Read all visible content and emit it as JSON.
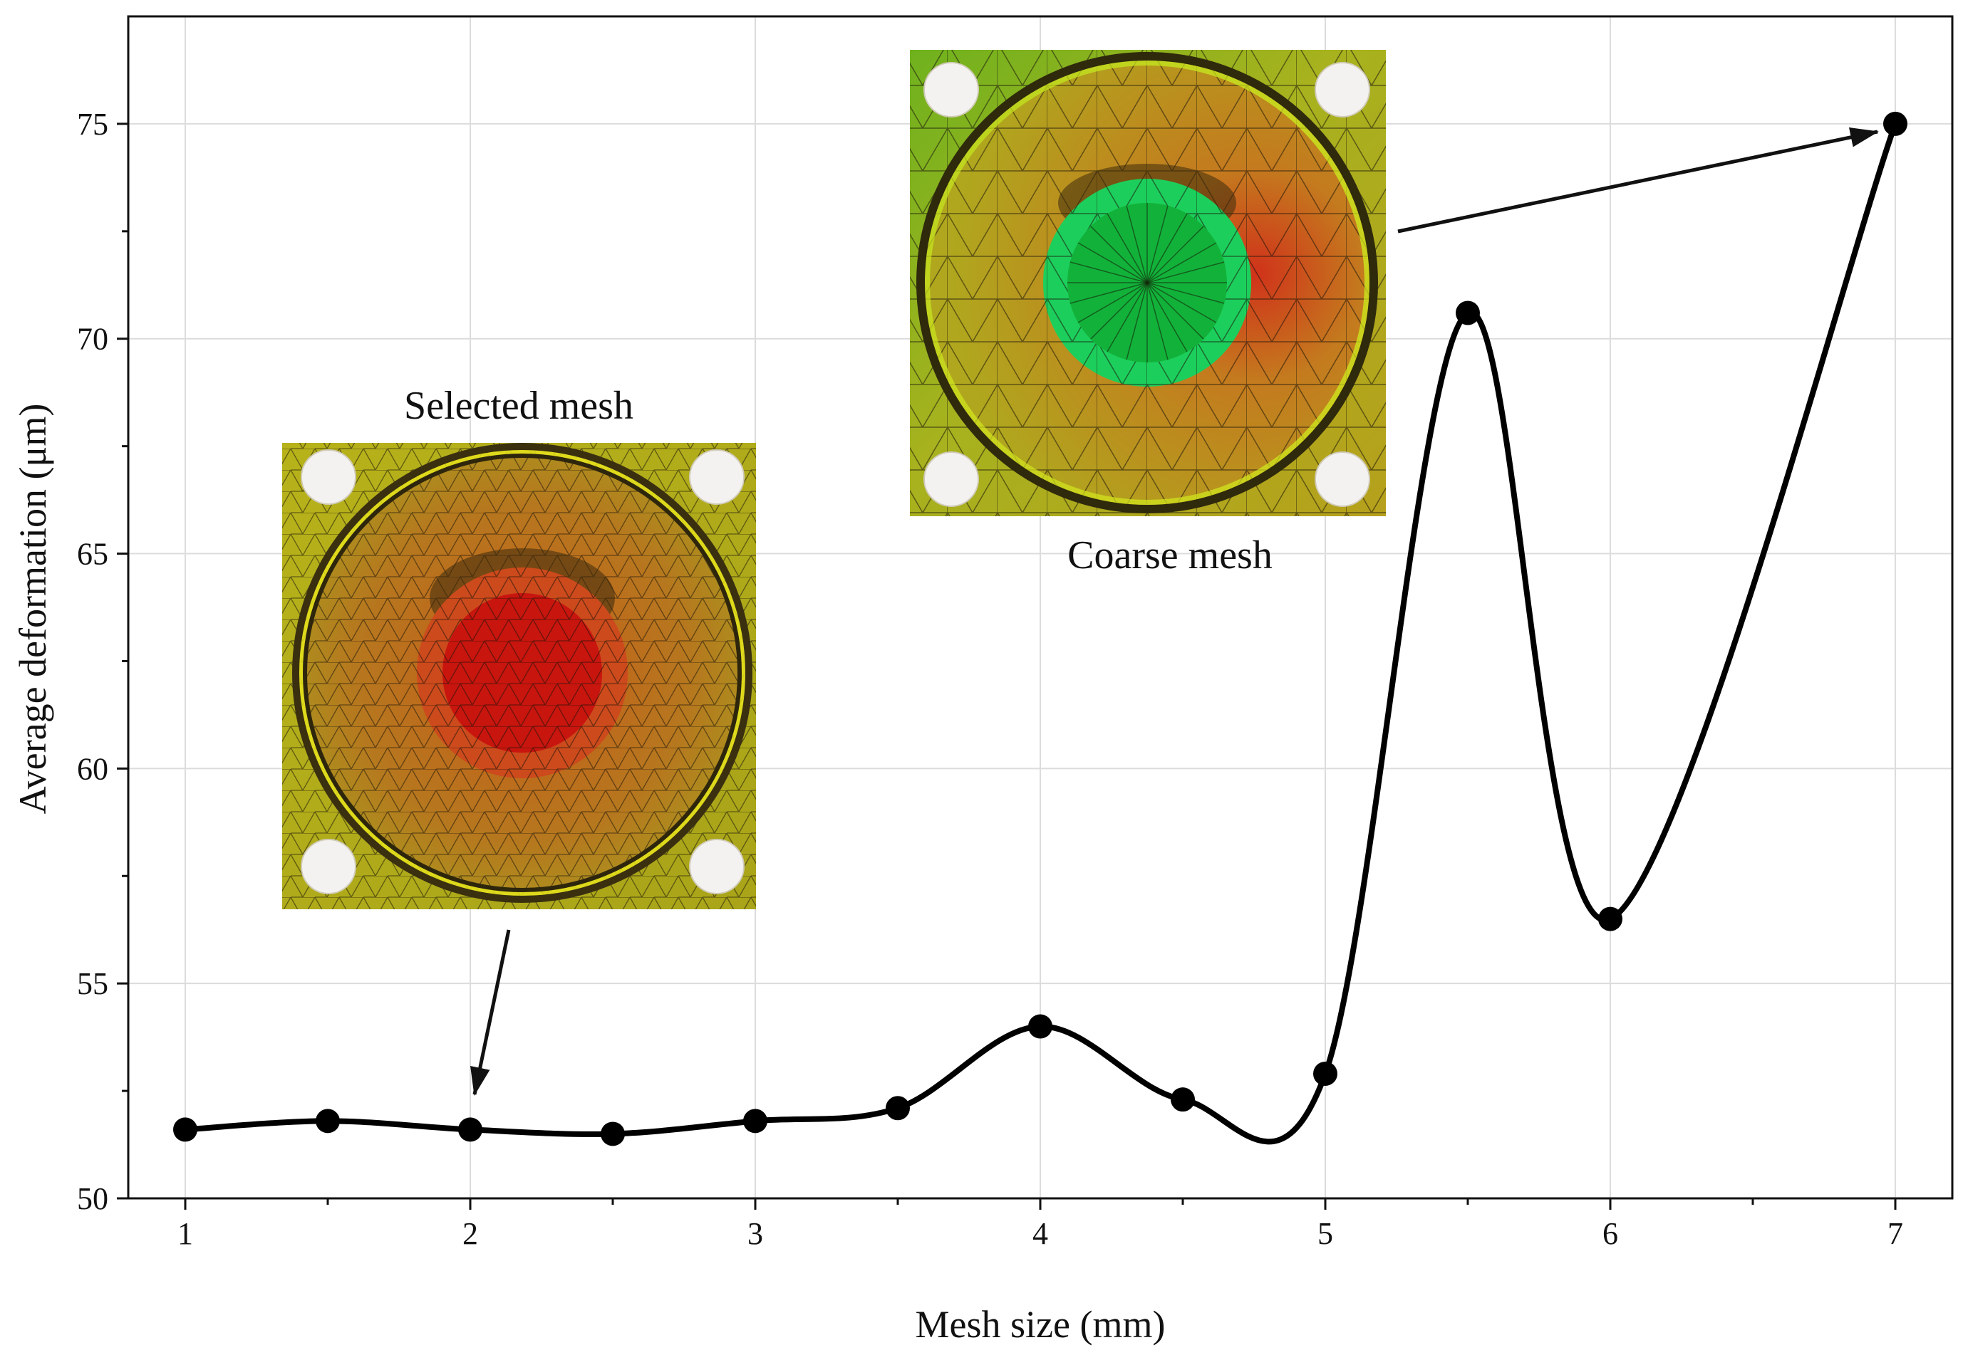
{
  "chart_data": {
    "type": "line",
    "title": "",
    "xlabel": "Mesh size (mm)",
    "ylabel": "Average deformation (μm)",
    "xlim": [
      0.8,
      7.2
    ],
    "ylim": [
      50,
      77.5
    ],
    "grid": true,
    "x": [
      1,
      1.5,
      2,
      2.5,
      3,
      3.5,
      4,
      4.5,
      5,
      5.5,
      6,
      7
    ],
    "y": [
      51.6,
      51.8,
      51.6,
      51.5,
      51.8,
      52.1,
      54.0,
      52.3,
      52.9,
      70.6,
      56.5,
      75.0
    ],
    "x_ticks": [
      1,
      2,
      3,
      4,
      5,
      6,
      7
    ],
    "x_tick_labels": [
      "1",
      "2",
      "3",
      "4",
      "5",
      "6",
      "7"
    ],
    "y_ticks": [
      50,
      55,
      60,
      65,
      70,
      75
    ],
    "y_tick_labels": [
      "50",
      "55",
      "60",
      "65",
      "70",
      "75"
    ],
    "line_color": "#000000",
    "annotations": [
      {
        "text": "Selected mesh",
        "points_to_x": 2,
        "points_to_y": 51.6
      },
      {
        "text": "Coarse mesh",
        "points_to_x": 7,
        "points_to_y": 75.0
      }
    ]
  },
  "insets": {
    "selected": {
      "label": "Selected mesh",
      "center_color": "#c8150e",
      "ring_color": "#cc4a1c",
      "face_color": "#b8a81c"
    },
    "coarse": {
      "label": "Coarse mesh",
      "center_color": "#12b23a",
      "ring_color": "#1ccf5c",
      "face_color": "#b9a41e"
    }
  }
}
